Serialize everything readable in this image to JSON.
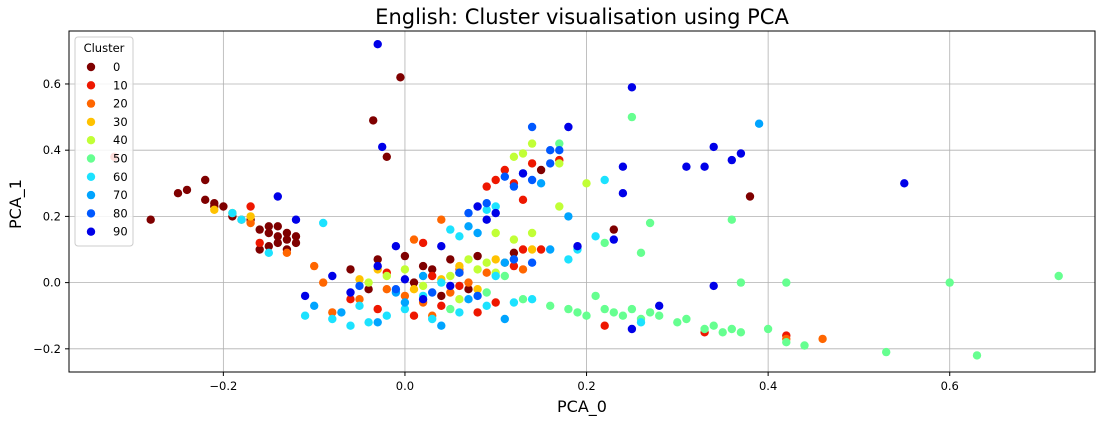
{
  "chart_data": {
    "type": "scatter",
    "title": "English: Cluster visualisation using PCA",
    "xlabel": "PCA_0",
    "ylabel": "PCA_1",
    "xlim": [
      -0.37,
      0.76
    ],
    "ylim": [
      -0.27,
      0.76
    ],
    "xticks": [
      {
        "value": -0.2,
        "label": "−0.2"
      },
      {
        "value": 0.0,
        "label": "0.0"
      },
      {
        "value": 0.2,
        "label": "0.2"
      },
      {
        "value": 0.4,
        "label": "0.4"
      },
      {
        "value": 0.6,
        "label": "0.6"
      }
    ],
    "yticks": [
      {
        "value": -0.2,
        "label": "−0.2"
      },
      {
        "value": 0.0,
        "label": "0.0"
      },
      {
        "value": 0.2,
        "label": "0.2"
      },
      {
        "value": 0.4,
        "label": "0.4"
      },
      {
        "value": 0.6,
        "label": "0.6"
      }
    ],
    "grid": true,
    "legend": {
      "title": "Cluster",
      "position": "top-left",
      "entries": [
        {
          "label": "0",
          "color": "#7f0000"
        },
        {
          "label": "10",
          "color": "#ee1700"
        },
        {
          "label": "20",
          "color": "#ff6600"
        },
        {
          "label": "30",
          "color": "#ffc200"
        },
        {
          "label": "40",
          "color": "#c1ff36"
        },
        {
          "label": "50",
          "color": "#66ff90"
        },
        {
          "label": "60",
          "color": "#1ce2ff"
        },
        {
          "label": "70",
          "color": "#00a4ff"
        },
        {
          "label": "80",
          "color": "#0058ff"
        },
        {
          "label": "90",
          "color": "#0000e8"
        }
      ]
    },
    "series": [
      {
        "cluster": "0",
        "color": "#7f0000",
        "points": [
          [
            -0.28,
            0.19
          ],
          [
            -0.25,
            0.27
          ],
          [
            -0.24,
            0.28
          ],
          [
            -0.22,
            0.31
          ],
          [
            -0.22,
            0.25
          ],
          [
            -0.21,
            0.23
          ],
          [
            -0.21,
            0.24
          ],
          [
            -0.2,
            0.23
          ],
          [
            -0.19,
            0.2
          ],
          [
            -0.17,
            0.19
          ],
          [
            -0.16,
            0.16
          ],
          [
            -0.15,
            0.15
          ],
          [
            -0.15,
            0.17
          ],
          [
            -0.14,
            0.17
          ],
          [
            -0.14,
            0.14
          ],
          [
            -0.13,
            0.13
          ],
          [
            -0.13,
            0.15
          ],
          [
            -0.12,
            0.12
          ],
          [
            -0.14,
            0.12
          ],
          [
            -0.13,
            0.1
          ],
          [
            -0.12,
            0.14
          ],
          [
            -0.15,
            0.11
          ],
          [
            -0.16,
            0.1
          ],
          [
            -0.035,
            0.49
          ],
          [
            -0.02,
            0.38
          ],
          [
            -0.005,
            0.62
          ],
          [
            -0.03,
            0.07
          ],
          [
            0.0,
            0.08
          ],
          [
            0.02,
            0.05
          ],
          [
            0.03,
            0.04
          ],
          [
            0.05,
            0.07
          ],
          [
            0.06,
            0.03
          ],
          [
            0.08,
            0.08
          ],
          [
            0.12,
            0.09
          ],
          [
            0.15,
            0.34
          ],
          [
            0.38,
            0.26
          ],
          [
            0.23,
            0.16
          ],
          [
            -0.06,
            0.04
          ],
          [
            0.01,
            0.0
          ],
          [
            0.04,
            -0.04
          ],
          [
            -0.04,
            -0.02
          ],
          [
            0.07,
            -0.02
          ]
        ]
      },
      {
        "cluster": "10",
        "color": "#ee1700",
        "points": [
          [
            -0.32,
            0.38
          ],
          [
            -0.17,
            0.23
          ],
          [
            -0.16,
            0.12
          ],
          [
            0.09,
            0.29
          ],
          [
            0.1,
            0.31
          ],
          [
            0.11,
            0.34
          ],
          [
            0.12,
            0.3
          ],
          [
            0.13,
            0.25
          ],
          [
            0.14,
            0.36
          ],
          [
            0.17,
            0.37
          ],
          [
            0.13,
            0.1
          ],
          [
            0.15,
            0.1
          ],
          [
            0.12,
            0.05
          ],
          [
            0.02,
            0.12
          ],
          [
            -0.03,
            -0.08
          ],
          [
            0.01,
            -0.1
          ],
          [
            0.04,
            -0.07
          ],
          [
            0.1,
            -0.06
          ],
          [
            0.08,
            -0.09
          ],
          [
            0.22,
            -0.13
          ],
          [
            0.33,
            -0.15
          ],
          [
            0.42,
            -0.16
          ],
          [
            0.03,
            0.02
          ],
          [
            0.06,
            -0.01
          ],
          [
            -0.06,
            -0.05
          ],
          [
            -0.02,
            0.03
          ]
        ]
      },
      {
        "cluster": "20",
        "color": "#ff6600",
        "points": [
          [
            -0.18,
            0.19
          ],
          [
            -0.17,
            0.18
          ],
          [
            -0.13,
            0.09
          ],
          [
            0.01,
            0.13
          ],
          [
            0.04,
            0.19
          ],
          [
            0.11,
            0.06
          ],
          [
            0.09,
            0.03
          ],
          [
            0.07,
            0.0
          ],
          [
            0.05,
            -0.03
          ],
          [
            0.02,
            -0.06
          ],
          [
            0.0,
            -0.04
          ],
          [
            -0.02,
            -0.02
          ],
          [
            -0.05,
            -0.05
          ],
          [
            -0.08,
            -0.09
          ],
          [
            -0.09,
            0.0
          ],
          [
            -0.1,
            0.05
          ],
          [
            0.13,
            0.04
          ],
          [
            0.46,
            -0.17
          ],
          [
            0.42,
            -0.17
          ],
          [
            0.03,
            -0.1
          ],
          [
            0.06,
            0.04
          ]
        ]
      },
      {
        "cluster": "30",
        "color": "#ffc200",
        "points": [
          [
            -0.21,
            0.22
          ],
          [
            -0.19,
            0.21
          ],
          [
            -0.17,
            0.2
          ],
          [
            0.06,
            0.05
          ],
          [
            -0.03,
            0.04
          ],
          [
            0.08,
            -0.02
          ],
          [
            0.01,
            -0.02
          ],
          [
            -0.05,
            0.01
          ],
          [
            0.04,
            0.01
          ],
          [
            0.14,
            0.1
          ],
          [
            0.1,
            0.07
          ]
        ]
      },
      {
        "cluster": "40",
        "color": "#c1ff36",
        "points": [
          [
            0.12,
            0.38
          ],
          [
            0.13,
            0.39
          ],
          [
            0.14,
            0.42
          ],
          [
            0.17,
            0.36
          ],
          [
            0.17,
            0.23
          ],
          [
            0.2,
            0.3
          ],
          [
            0.14,
            0.15
          ],
          [
            0.1,
            0.15
          ],
          [
            0.12,
            0.13
          ],
          [
            0.09,
            0.06
          ],
          [
            0.08,
            0.04
          ],
          [
            0.05,
            0.02
          ],
          [
            0.02,
            -0.01
          ],
          [
            0.0,
            0.04
          ],
          [
            -0.02,
            0.02
          ],
          [
            -0.04,
            0.0
          ],
          [
            0.06,
            -0.05
          ],
          [
            0.1,
            0.03
          ],
          [
            0.07,
            0.07
          ]
        ]
      },
      {
        "cluster": "50",
        "color": "#66ff90",
        "points": [
          [
            0.25,
            0.5
          ],
          [
            0.17,
            0.42
          ],
          [
            0.26,
            0.09
          ],
          [
            0.27,
            0.18
          ],
          [
            0.22,
            0.12
          ],
          [
            0.16,
            -0.07
          ],
          [
            0.18,
            -0.08
          ],
          [
            0.19,
            -0.09
          ],
          [
            0.2,
            -0.1
          ],
          [
            0.21,
            -0.04
          ],
          [
            0.22,
            -0.08
          ],
          [
            0.23,
            -0.09
          ],
          [
            0.24,
            -0.1
          ],
          [
            0.25,
            -0.08
          ],
          [
            0.26,
            -0.11
          ],
          [
            0.27,
            -0.09
          ],
          [
            0.28,
            -0.1
          ],
          [
            0.3,
            -0.12
          ],
          [
            0.31,
            -0.11
          ],
          [
            0.33,
            -0.14
          ],
          [
            0.34,
            -0.13
          ],
          [
            0.35,
            -0.15
          ],
          [
            0.36,
            -0.14
          ],
          [
            0.37,
            -0.15
          ],
          [
            0.4,
            -0.14
          ],
          [
            0.42,
            -0.18
          ],
          [
            0.44,
            -0.19
          ],
          [
            0.53,
            -0.21
          ],
          [
            0.63,
            -0.22
          ],
          [
            0.72,
            0.02
          ],
          [
            0.6,
            0.0
          ],
          [
            0.42,
            0.0
          ],
          [
            0.37,
            0.0
          ],
          [
            0.36,
            0.19
          ],
          [
            0.11,
            0.02
          ],
          [
            0.13,
            -0.05
          ],
          [
            0.09,
            -0.03
          ],
          [
            0.05,
            -0.08
          ]
        ]
      },
      {
        "cluster": "60",
        "color": "#1ce2ff",
        "points": [
          [
            -0.19,
            0.21
          ],
          [
            -0.18,
            0.19
          ],
          [
            -0.15,
            0.09
          ],
          [
            -0.09,
            0.18
          ],
          [
            -0.11,
            -0.1
          ],
          [
            -0.08,
            -0.11
          ],
          [
            -0.06,
            -0.13
          ],
          [
            -0.04,
            -0.12
          ],
          [
            -0.02,
            -0.1
          ],
          [
            0.0,
            -0.08
          ],
          [
            0.03,
            -0.11
          ],
          [
            0.06,
            -0.09
          ],
          [
            0.09,
            -0.07
          ],
          [
            0.12,
            -0.06
          ],
          [
            0.14,
            -0.05
          ],
          [
            0.06,
            0.14
          ],
          [
            0.05,
            0.16
          ],
          [
            0.09,
            0.22
          ],
          [
            0.1,
            0.23
          ],
          [
            0.22,
            0.31
          ],
          [
            0.21,
            0.14
          ],
          [
            0.19,
            0.1
          ],
          [
            0.18,
            0.07
          ],
          [
            0.26,
            -0.12
          ],
          [
            0.1,
            0.02
          ],
          [
            0.02,
            -0.04
          ],
          [
            -0.05,
            -0.07
          ],
          [
            0.04,
            0.0
          ]
        ]
      },
      {
        "cluster": "70",
        "color": "#00a4ff",
        "points": [
          [
            0.39,
            0.48
          ],
          [
            0.15,
            0.3
          ],
          [
            0.13,
            0.33
          ],
          [
            0.18,
            0.2
          ],
          [
            0.16,
            0.1
          ],
          [
            0.07,
            0.17
          ],
          [
            0.08,
            0.15
          ],
          [
            0.12,
            0.07
          ],
          [
            0.11,
            0.06
          ],
          [
            -0.1,
            -0.07
          ],
          [
            -0.07,
            -0.09
          ],
          [
            -0.03,
            -0.12
          ],
          [
            0.0,
            -0.06
          ],
          [
            0.04,
            -0.13
          ],
          [
            0.07,
            -0.05
          ],
          [
            0.11,
            -0.11
          ],
          [
            0.02,
            0.02
          ],
          [
            -0.01,
            -0.03
          ]
        ]
      },
      {
        "cluster": "80",
        "color": "#0058ff",
        "points": [
          [
            0.14,
            0.47
          ],
          [
            0.16,
            0.36
          ],
          [
            0.16,
            0.4
          ],
          [
            0.17,
            0.4
          ],
          [
            0.14,
            0.31
          ],
          [
            0.12,
            0.29
          ],
          [
            0.11,
            0.32
          ],
          [
            0.09,
            0.24
          ],
          [
            0.07,
            0.21
          ],
          [
            0.12,
            0.07
          ],
          [
            0.14,
            0.06
          ],
          [
            0.06,
            0.03
          ],
          [
            -0.05,
            -0.01
          ],
          [
            -0.01,
            -0.02
          ],
          [
            0.03,
            -0.03
          ],
          [
            0.08,
            -0.04
          ]
        ]
      },
      {
        "cluster": "90",
        "color": "#0000e8",
        "points": [
          [
            -0.03,
            0.72
          ],
          [
            -0.025,
            0.41
          ],
          [
            0.25,
            0.59
          ],
          [
            0.18,
            0.47
          ],
          [
            0.24,
            0.35
          ],
          [
            0.24,
            0.27
          ],
          [
            0.23,
            0.13
          ],
          [
            0.19,
            0.11
          ],
          [
            0.33,
            0.35
          ],
          [
            0.31,
            0.35
          ],
          [
            0.34,
            0.41
          ],
          [
            0.36,
            0.37
          ],
          [
            0.37,
            0.39
          ],
          [
            0.55,
            0.3
          ],
          [
            0.34,
            -0.01
          ],
          [
            0.28,
            -0.07
          ],
          [
            0.25,
            -0.14
          ],
          [
            0.13,
            0.33
          ],
          [
            0.1,
            0.21
          ],
          [
            0.09,
            0.19
          ],
          [
            0.08,
            0.23
          ],
          [
            -0.14,
            0.26
          ],
          [
            -0.12,
            0.19
          ],
          [
            -0.01,
            0.11
          ],
          [
            0.04,
            0.11
          ],
          [
            -0.08,
            0.02
          ],
          [
            -0.11,
            -0.04
          ],
          [
            -0.06,
            -0.03
          ],
          [
            0.0,
            0.01
          ],
          [
            0.05,
            -0.01
          ],
          [
            0.02,
            -0.05
          ],
          [
            -0.03,
            0.05
          ]
        ]
      }
    ]
  }
}
